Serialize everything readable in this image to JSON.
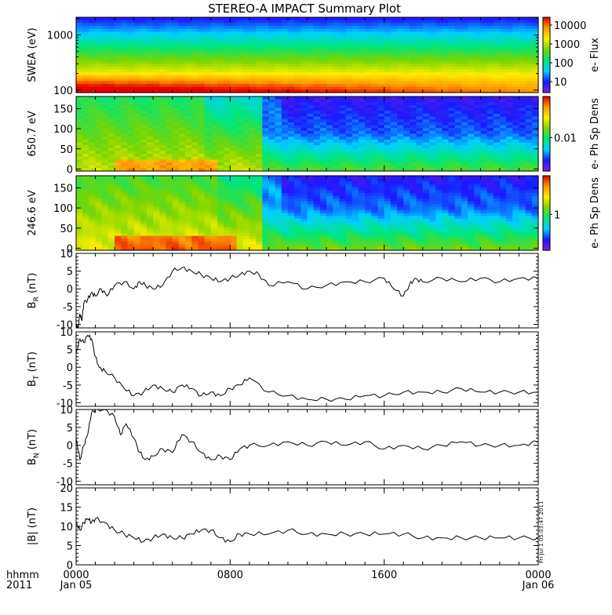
{
  "title": "STEREO-A IMPACT Summary Plot",
  "footer": {
    "hhmm_label": "hhmm",
    "year_label": "2011",
    "tick_times": [
      "0000",
      "0800",
      "1600",
      "0000"
    ],
    "tick_dates": [
      "Jan 05",
      "",
      "",
      "Jan 06"
    ]
  },
  "side_stamp": "Fri Jul 1 05:03:47 2011",
  "colors": {
    "line": "#000000",
    "frame": "#000000",
    "colormap": [
      "#7b1fe0",
      "#1a1aff",
      "#00d0ff",
      "#00e676",
      "#7bd500",
      "#ffee00",
      "#ff9900",
      "#e60000"
    ]
  },
  "chart_data": [
    {
      "type": "heatmap",
      "id": "swea",
      "ylabel": "SWEA (eV)",
      "yscale": "log",
      "ylim": [
        90,
        2100
      ],
      "yticks": [
        "1000",
        "100"
      ],
      "colorbar": {
        "label": "e- Flux",
        "ticks": [
          "10000",
          "1000",
          "100",
          "10"
        ],
        "scale": "log"
      }
    },
    {
      "type": "heatmap",
      "id": "pad650",
      "ylabel": "650.7 eV",
      "ylim": [
        -5,
        180
      ],
      "yticks": [
        "150",
        "100",
        "50",
        "0"
      ],
      "colorbar": {
        "label": "e- Ph Sp Dens",
        "ticks": [
          "0.01"
        ]
      }
    },
    {
      "type": "heatmap",
      "id": "pad246",
      "ylabel": "246.6 eV",
      "ylim": [
        -5,
        180
      ],
      "yticks": [
        "150",
        "100",
        "50",
        "0"
      ],
      "colorbar": {
        "label": "e- Ph Sp Dens",
        "ticks": [
          "1"
        ]
      }
    },
    {
      "type": "line",
      "id": "br",
      "ylabel": "B",
      "ylabel_sub": "R",
      "ylabel_unit": "(nT)",
      "ylim": [
        -11,
        10
      ],
      "yticks": [
        10,
        5,
        0,
        -5,
        -10
      ],
      "x": [
        0.0,
        0.1,
        0.2,
        0.3,
        0.4,
        0.6,
        0.8,
        1.0,
        1.3,
        1.6,
        2.0,
        2.5,
        3.0,
        3.3,
        3.6,
        4.0,
        4.5,
        5.0,
        5.5,
        6.0,
        6.5,
        7.0,
        7.5,
        8.0,
        8.5,
        9.0,
        9.5,
        10.0,
        11.0,
        12.0,
        13.0,
        14.0,
        15.0,
        16.0,
        16.5,
        17.0,
        17.3,
        17.6,
        18.0,
        19.0,
        20.0,
        21.0,
        22.0,
        23.0,
        24.0
      ],
      "y": [
        -10,
        -11,
        -7,
        -9,
        -4,
        -3,
        -1,
        -2,
        0,
        -2,
        1,
        2,
        0,
        2,
        1,
        0,
        1,
        5,
        6,
        5,
        4,
        3,
        2,
        3,
        4,
        5,
        4,
        1,
        2,
        0,
        1,
        2,
        2,
        3,
        0,
        -2,
        1,
        3,
        2,
        3,
        2,
        3,
        2,
        3,
        3
      ]
    },
    {
      "type": "line",
      "id": "bt",
      "ylabel": "B",
      "ylabel_sub": "T",
      "ylabel_unit": "(nT)",
      "ylim": [
        -11,
        10
      ],
      "yticks": [
        10,
        5,
        0,
        -5,
        -10
      ],
      "x": [
        0.0,
        0.2,
        0.4,
        0.6,
        0.8,
        1.0,
        1.2,
        1.5,
        2.0,
        2.5,
        3.0,
        3.5,
        4.0,
        4.5,
        5.0,
        5.5,
        6.0,
        6.5,
        7.0,
        7.5,
        8.0,
        8.5,
        9.0,
        10.0,
        11.0,
        12.0,
        13.0,
        14.0,
        15.0,
        16.0,
        17.0,
        18.0,
        19.0,
        20.0,
        21.0,
        22.0,
        23.0,
        24.0
      ],
      "y": [
        4,
        8,
        7,
        9,
        8,
        3,
        0,
        -1,
        -3,
        -6,
        -8,
        -7,
        -5,
        -6,
        -7,
        -5,
        -6,
        -8,
        -7,
        -8,
        -6,
        -5,
        -3,
        -7,
        -8,
        -9,
        -9,
        -9,
        -8,
        -8,
        -7,
        -7,
        -7,
        -6,
        -7,
        -7,
        -7,
        -7
      ]
    },
    {
      "type": "line",
      "id": "bn",
      "ylabel": "B",
      "ylabel_sub": "N",
      "ylabel_unit": "(nT)",
      "ylim": [
        -11,
        10
      ],
      "yticks": [
        10,
        5,
        0,
        -5,
        -10
      ],
      "x": [
        0.0,
        0.2,
        0.4,
        0.6,
        0.8,
        1.0,
        1.5,
        2.0,
        2.3,
        2.6,
        3.0,
        3.3,
        3.6,
        4.0,
        4.5,
        5.0,
        5.5,
        6.0,
        6.5,
        7.0,
        7.5,
        8.0,
        8.5,
        9.0,
        10.0,
        11.0,
        12.0,
        13.0,
        14.0,
        15.0,
        16.0,
        17.0,
        18.0,
        19.0,
        20.0,
        21.0,
        22.0,
        23.0,
        24.0
      ],
      "y": [
        2,
        -4,
        0,
        3,
        9,
        10,
        10,
        8,
        3,
        6,
        2,
        -2,
        -4,
        -3,
        -1,
        -2,
        3,
        1,
        -2,
        -4,
        -3,
        -4,
        -1,
        0,
        0,
        1,
        0,
        1,
        0,
        1,
        -1,
        0,
        -1,
        0,
        1,
        0,
        0,
        0,
        1
      ]
    },
    {
      "type": "line",
      "id": "bmag",
      "ylabel": "|B| (nT)",
      "ylim": [
        0,
        20
      ],
      "yticks": [
        20,
        15,
        10,
        5,
        0
      ],
      "x": [
        0.0,
        0.2,
        0.4,
        0.6,
        0.8,
        1.0,
        1.5,
        2.0,
        2.5,
        3.0,
        3.5,
        4.0,
        4.5,
        5.0,
        5.5,
        6.0,
        6.5,
        7.0,
        7.5,
        8.0,
        8.5,
        9.0,
        10.0,
        11.0,
        12.0,
        13.0,
        14.0,
        15.0,
        16.0,
        17.0,
        18.0,
        19.0,
        20.0,
        21.0,
        22.0,
        23.0,
        24.0
      ],
      "y": [
        11,
        9,
        11,
        12,
        11,
        12,
        11,
        9,
        8,
        7,
        6,
        7,
        8,
        7,
        7,
        8,
        9,
        9,
        7,
        6,
        8,
        8,
        8,
        9,
        8,
        8,
        8,
        8,
        8,
        8,
        7,
        7,
        7,
        7,
        7,
        7,
        7
      ]
    }
  ]
}
